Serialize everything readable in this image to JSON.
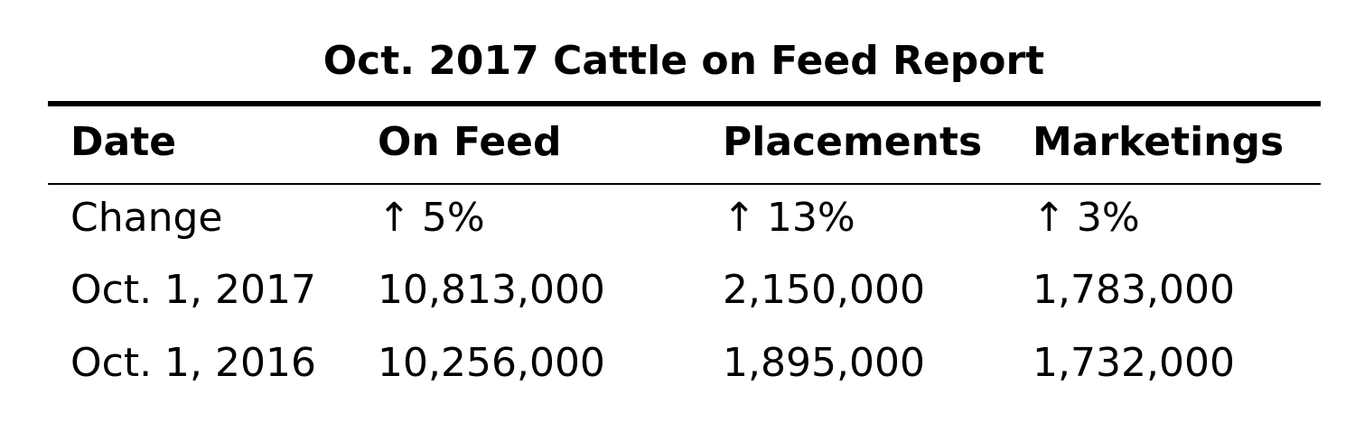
{
  "title": "Oct. 2017 Cattle on Feed Report",
  "columns": [
    "Date",
    "On Feed",
    "Placements",
    "Marketings"
  ],
  "change_row": {
    "label": "Change",
    "arrow": "↑",
    "on_feed": "5%",
    "placements": "13%",
    "marketings": "3%"
  },
  "rows": [
    {
      "date": "Oct. 1, 2017",
      "on_feed": "10,813,000",
      "placements": "2,150,000",
      "marketings": "1,783,000"
    },
    {
      "date": "Oct. 1, 2016",
      "on_feed": "10,256,000",
      "placements": "1,895,000",
      "marketings": "1,732,000"
    }
  ],
  "chart_data": {
    "type": "table",
    "title": "Oct. 2017 Cattle on Feed Report",
    "columns": [
      "Date",
      "On Feed",
      "Placements",
      "Marketings"
    ],
    "rows": [
      [
        "Change",
        "↑ 5%",
        "↑ 13%",
        "↑ 3%"
      ],
      [
        "Oct. 1, 2017",
        10813000,
        2150000,
        1783000
      ],
      [
        "Oct. 1, 2016",
        10256000,
        1895000,
        1732000
      ]
    ]
  }
}
